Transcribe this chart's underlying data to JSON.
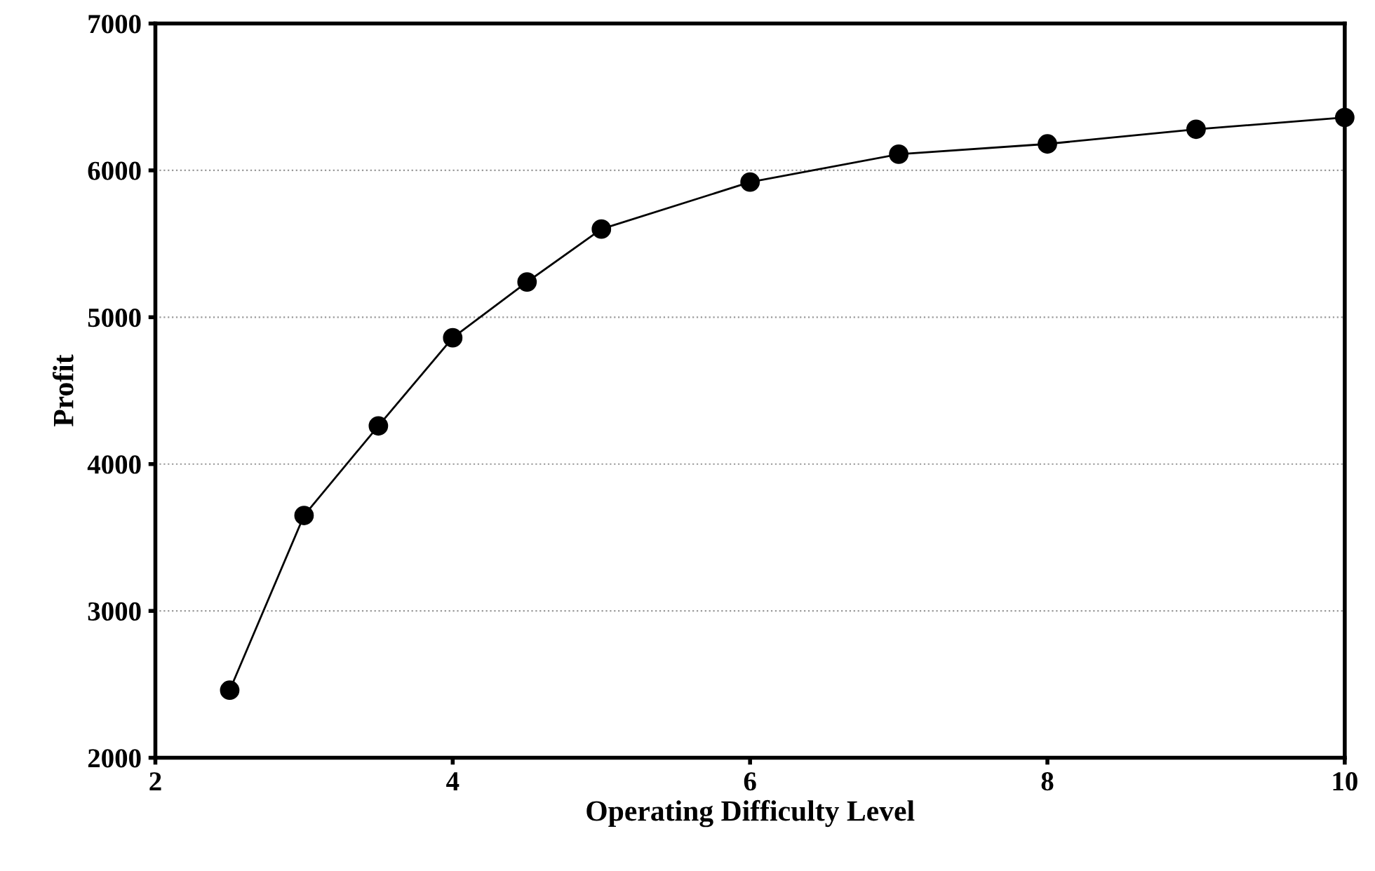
{
  "chart_data": {
    "type": "line",
    "xlabel": "Operating Difficulty Level",
    "ylabel": "Profit",
    "x": [
      2.5,
      3,
      3.5,
      4,
      4.5,
      5,
      6,
      7,
      8,
      9,
      10
    ],
    "series": [
      {
        "color": "#000000",
        "values": [
          2460,
          3650,
          4260,
          4860,
          5240,
          5600,
          5920,
          6110,
          6180,
          6280,
          6360
        ]
      }
    ],
    "xlim": [
      2,
      10
    ],
    "xticks": [
      2,
      4,
      6,
      8,
      10
    ],
    "ylim": [
      2000,
      7000
    ],
    "yticks": [
      2000,
      3000,
      4000,
      5000,
      6000,
      7000
    ],
    "grid": "y",
    "marker": "circle",
    "line_style": "solid"
  }
}
